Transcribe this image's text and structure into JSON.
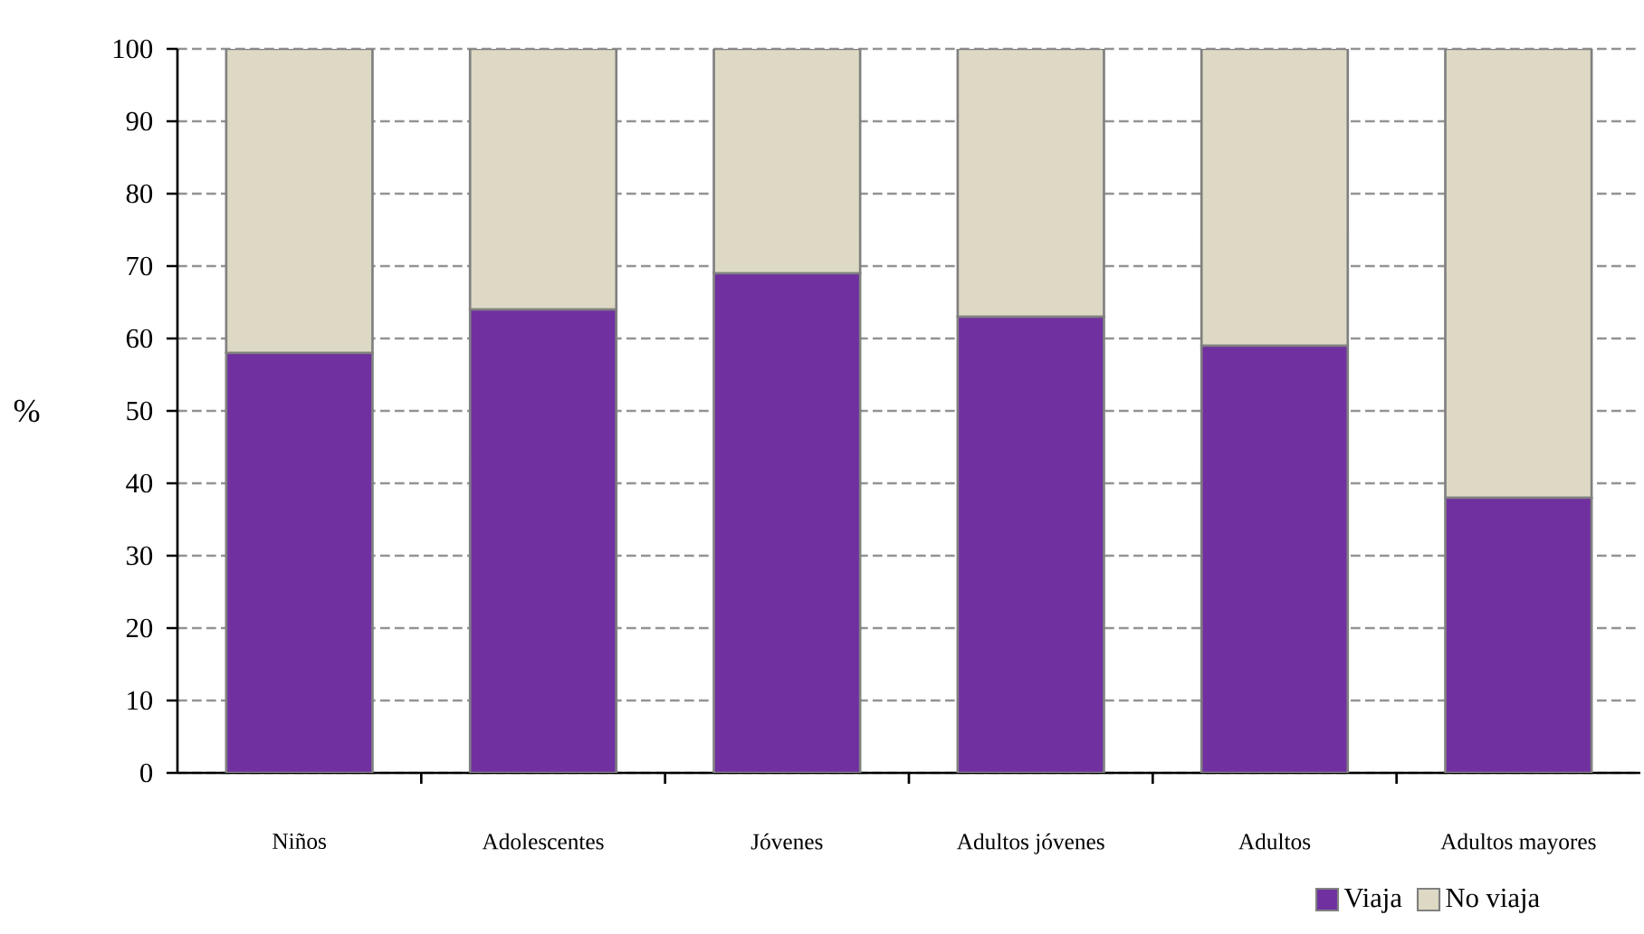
{
  "chart_data": {
    "type": "bar",
    "stacked": true,
    "ylabel": "%",
    "categories": [
      "Niños",
      "Adolescentes",
      "Jóvenes",
      "Adultos jóvenes",
      "Adultos",
      "Adultos mayores"
    ],
    "series": [
      {
        "name": "Viaja",
        "color": "#7030a0",
        "values": [
          58,
          64,
          69,
          63,
          59,
          38
        ]
      },
      {
        "name": "No viaja",
        "color": "#ddd9c4",
        "values": [
          42,
          36,
          31,
          37,
          41,
          62
        ]
      }
    ],
    "ylim": [
      0,
      100
    ],
    "yticks": [
      0,
      10,
      20,
      30,
      40,
      50,
      60,
      70,
      80,
      90,
      100
    ],
    "grid": "y",
    "legend": "bottom right"
  }
}
